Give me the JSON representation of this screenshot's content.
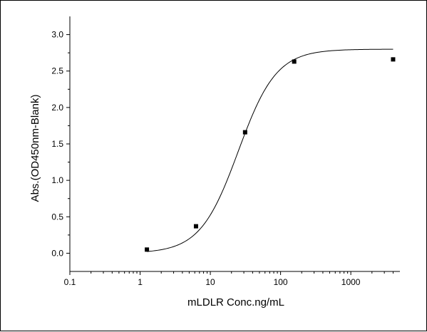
{
  "chart_data": {
    "type": "scatter",
    "title": "",
    "xlabel": "mLDLR Conc.ng/mL",
    "ylabel": "Abs.(OD450nm-Blank)",
    "xscale": "log",
    "xlim": [
      0.1,
      5000
    ],
    "ylim": [
      -0.25,
      3.25
    ],
    "xticks": [
      0.1,
      1,
      10,
      100,
      1000
    ],
    "xtick_labels": [
      "0.1",
      "1",
      "10",
      "100",
      "1000"
    ],
    "yticks": [
      0.0,
      0.5,
      1.0,
      1.5,
      2.0,
      2.5,
      3.0
    ],
    "ytick_labels": [
      "0.0",
      "0.5",
      "1.0",
      "1.5",
      "2.0",
      "2.5",
      "3.0"
    ],
    "grid": false,
    "legend": "none",
    "series": [
      {
        "marker": "square",
        "color": "#000000",
        "x": [
          1.25,
          6.25,
          31.25,
          156.25,
          4000
        ],
        "y": [
          0.05,
          0.37,
          1.66,
          2.63,
          2.66
        ]
      }
    ],
    "fit_curve": {
      "model": "4PL",
      "color": "#000000",
      "bottom": 0.0,
      "top": 2.8,
      "ec50": 25,
      "hill": 1.6,
      "x_range": [
        1.25,
        4000
      ]
    }
  }
}
